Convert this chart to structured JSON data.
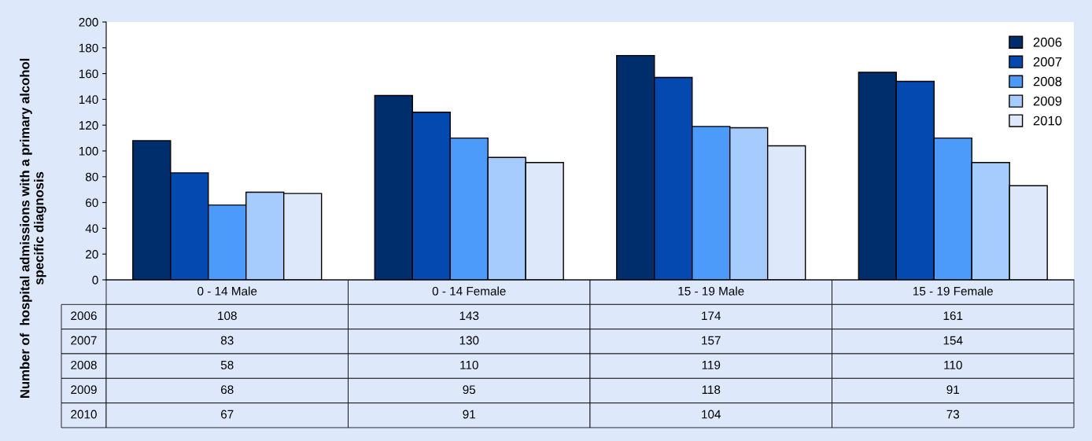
{
  "chart_data": {
    "type": "bar",
    "ylabel": "Number of  hospital admissions with a primary alcohol\nspecific diagnosis",
    "categories": [
      "0 - 14 Male",
      "0 - 14 Female",
      "15 - 19 Male",
      "15 - 19 Female"
    ],
    "series": [
      {
        "name": "2006",
        "color": "#002d6b",
        "values": [
          108,
          143,
          174,
          161
        ]
      },
      {
        "name": "2007",
        "color": "#0349b0",
        "values": [
          83,
          130,
          157,
          154
        ]
      },
      {
        "name": "2008",
        "color": "#4c9bfa",
        "values": [
          58,
          110,
          119,
          110
        ]
      },
      {
        "name": "2009",
        "color": "#a6cbfd",
        "values": [
          68,
          95,
          118,
          91
        ]
      },
      {
        "name": "2010",
        "color": "#dde9fb",
        "values": [
          67,
          91,
          104,
          73
        ]
      }
    ],
    "ylim": [
      0,
      200
    ],
    "yticks": [
      0,
      20,
      40,
      60,
      80,
      100,
      120,
      140,
      160,
      180,
      200
    ],
    "grid": false,
    "legend": "top right",
    "data_labels": true
  }
}
